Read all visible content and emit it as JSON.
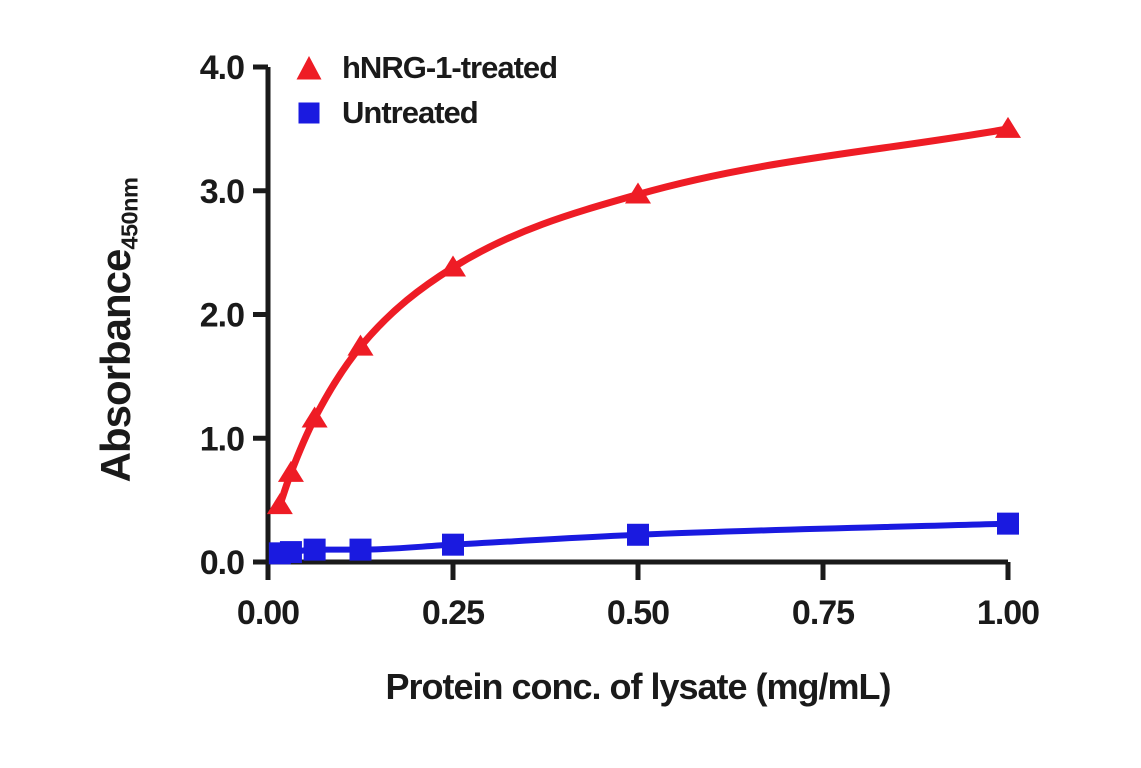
{
  "figure": {
    "background_color": "#ffffff",
    "text_color": "#1a1a1a",
    "axis_color": "#1a1a1a"
  },
  "chart_data": {
    "type": "line",
    "title": "",
    "xlabel": "Protein conc. of lysate (mg/mL)",
    "ylabel": "Absorbance",
    "ylabel_subscript": "450nm",
    "xlim": [
      0,
      1
    ],
    "ylim": [
      0,
      4
    ],
    "grid": false,
    "legend_position": "inside-top-left",
    "x_tick_values": [
      0,
      0.25,
      0.5,
      0.75,
      1.0
    ],
    "x_tick_labels": [
      "0.00",
      "0.25",
      "0.50",
      "0.75",
      "1.00"
    ],
    "y_tick_values": [
      0,
      1,
      2,
      3,
      4
    ],
    "y_tick_labels": [
      "0.0",
      "1.0",
      "2.0",
      "3.0",
      "4.0"
    ],
    "x": [
      0.016,
      0.031,
      0.063,
      0.125,
      0.25,
      0.5,
      1.0
    ],
    "series": [
      {
        "name": "hNRG-1-treated",
        "marker": "triangle",
        "color": "#ee1c25",
        "line_width": 7,
        "values": [
          0.46,
          0.72,
          1.16,
          1.74,
          2.38,
          2.97,
          3.5
        ]
      },
      {
        "name": "Untreated",
        "marker": "square",
        "color": "#1a1ae0",
        "line_width": 6,
        "values": [
          0.07,
          0.08,
          0.1,
          0.1,
          0.14,
          0.22,
          0.31
        ]
      }
    ]
  }
}
